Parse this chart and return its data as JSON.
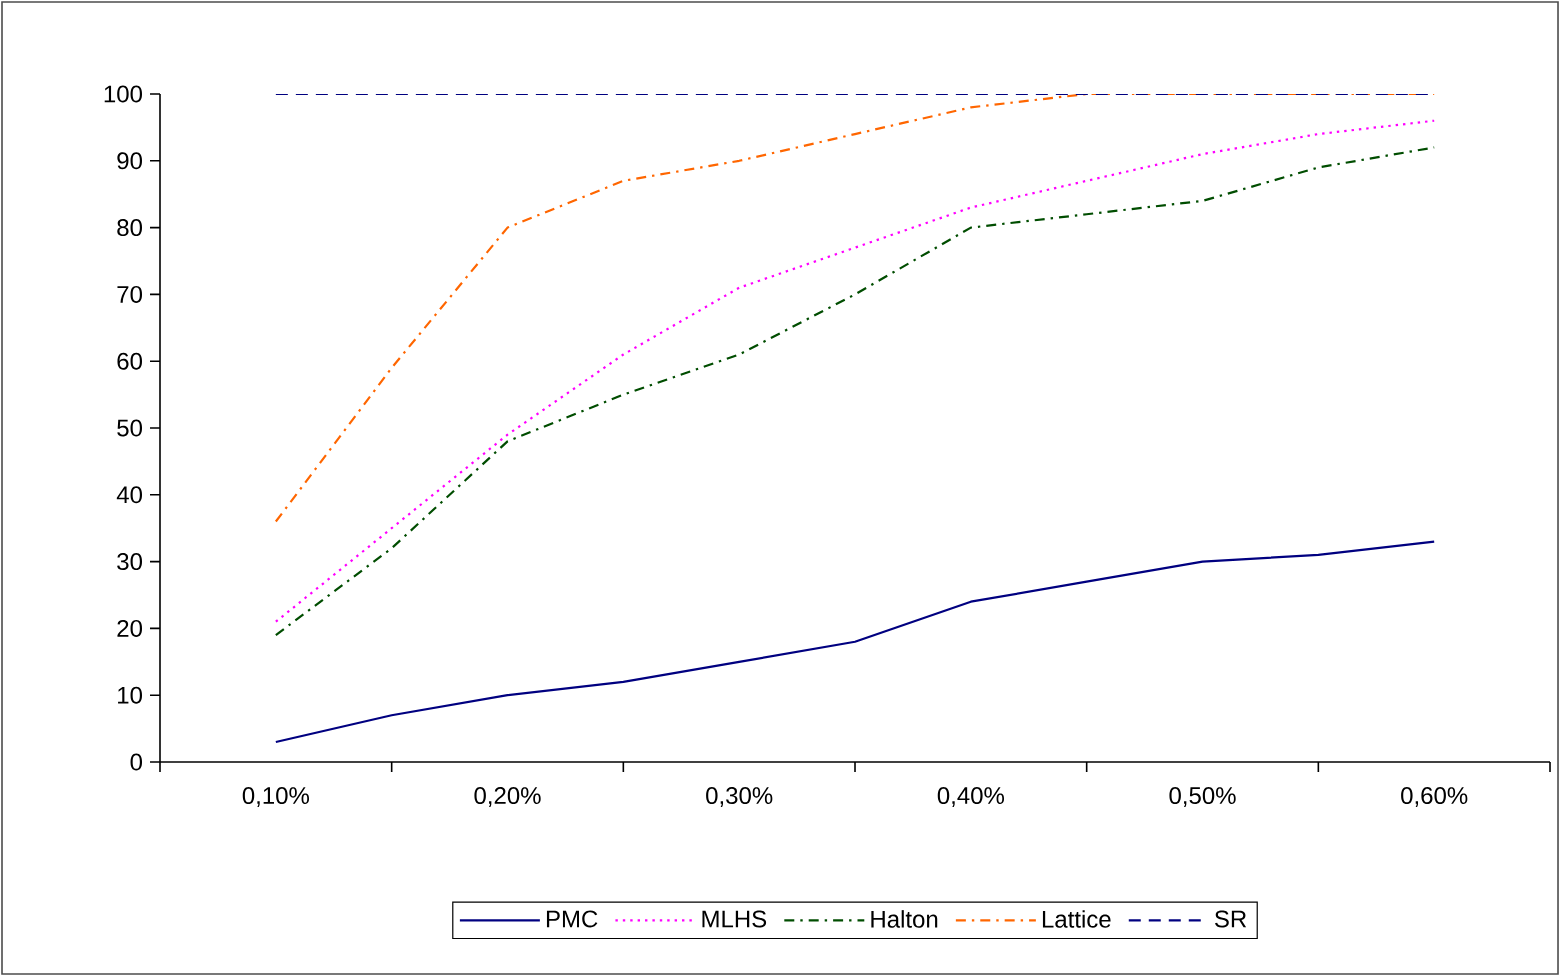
{
  "chart_data": {
    "type": "line",
    "categories": [
      "0,10%",
      null,
      "0,20%",
      null,
      "0,30%",
      null,
      "0,40%",
      null,
      "0,50%",
      null,
      "0,60%"
    ],
    "ylim": [
      0,
      100
    ],
    "yticks": [
      0,
      10,
      20,
      30,
      40,
      50,
      60,
      70,
      80,
      90,
      100
    ],
    "legend": "bottom",
    "series": [
      {
        "name": "PMC",
        "color": "#000080",
        "line_style": "solid",
        "values": [
          3,
          7,
          10,
          12,
          15,
          18,
          24,
          27,
          30,
          31,
          33
        ]
      },
      {
        "name": "MLHS",
        "color": "#ff00ff",
        "line_style": "dotted",
        "values": [
          21,
          35,
          49,
          61,
          71,
          77,
          83,
          87,
          91,
          94,
          96
        ]
      },
      {
        "name": "Halton",
        "color": "#004d00",
        "line_style": "dashdot",
        "values": [
          19,
          32,
          48,
          55,
          61,
          70,
          80,
          82,
          84,
          89,
          92
        ]
      },
      {
        "name": "Lattice",
        "color": "#ff6600",
        "line_style": "dashdot",
        "values": [
          36,
          59,
          80,
          87,
          90,
          94,
          98,
          100,
          100,
          100,
          100
        ]
      },
      {
        "name": "SR",
        "color": "#000080",
        "line_style": "dashed",
        "values": [
          100,
          100,
          100,
          100,
          100,
          100,
          100,
          100,
          100,
          100,
          100
        ]
      }
    ]
  }
}
